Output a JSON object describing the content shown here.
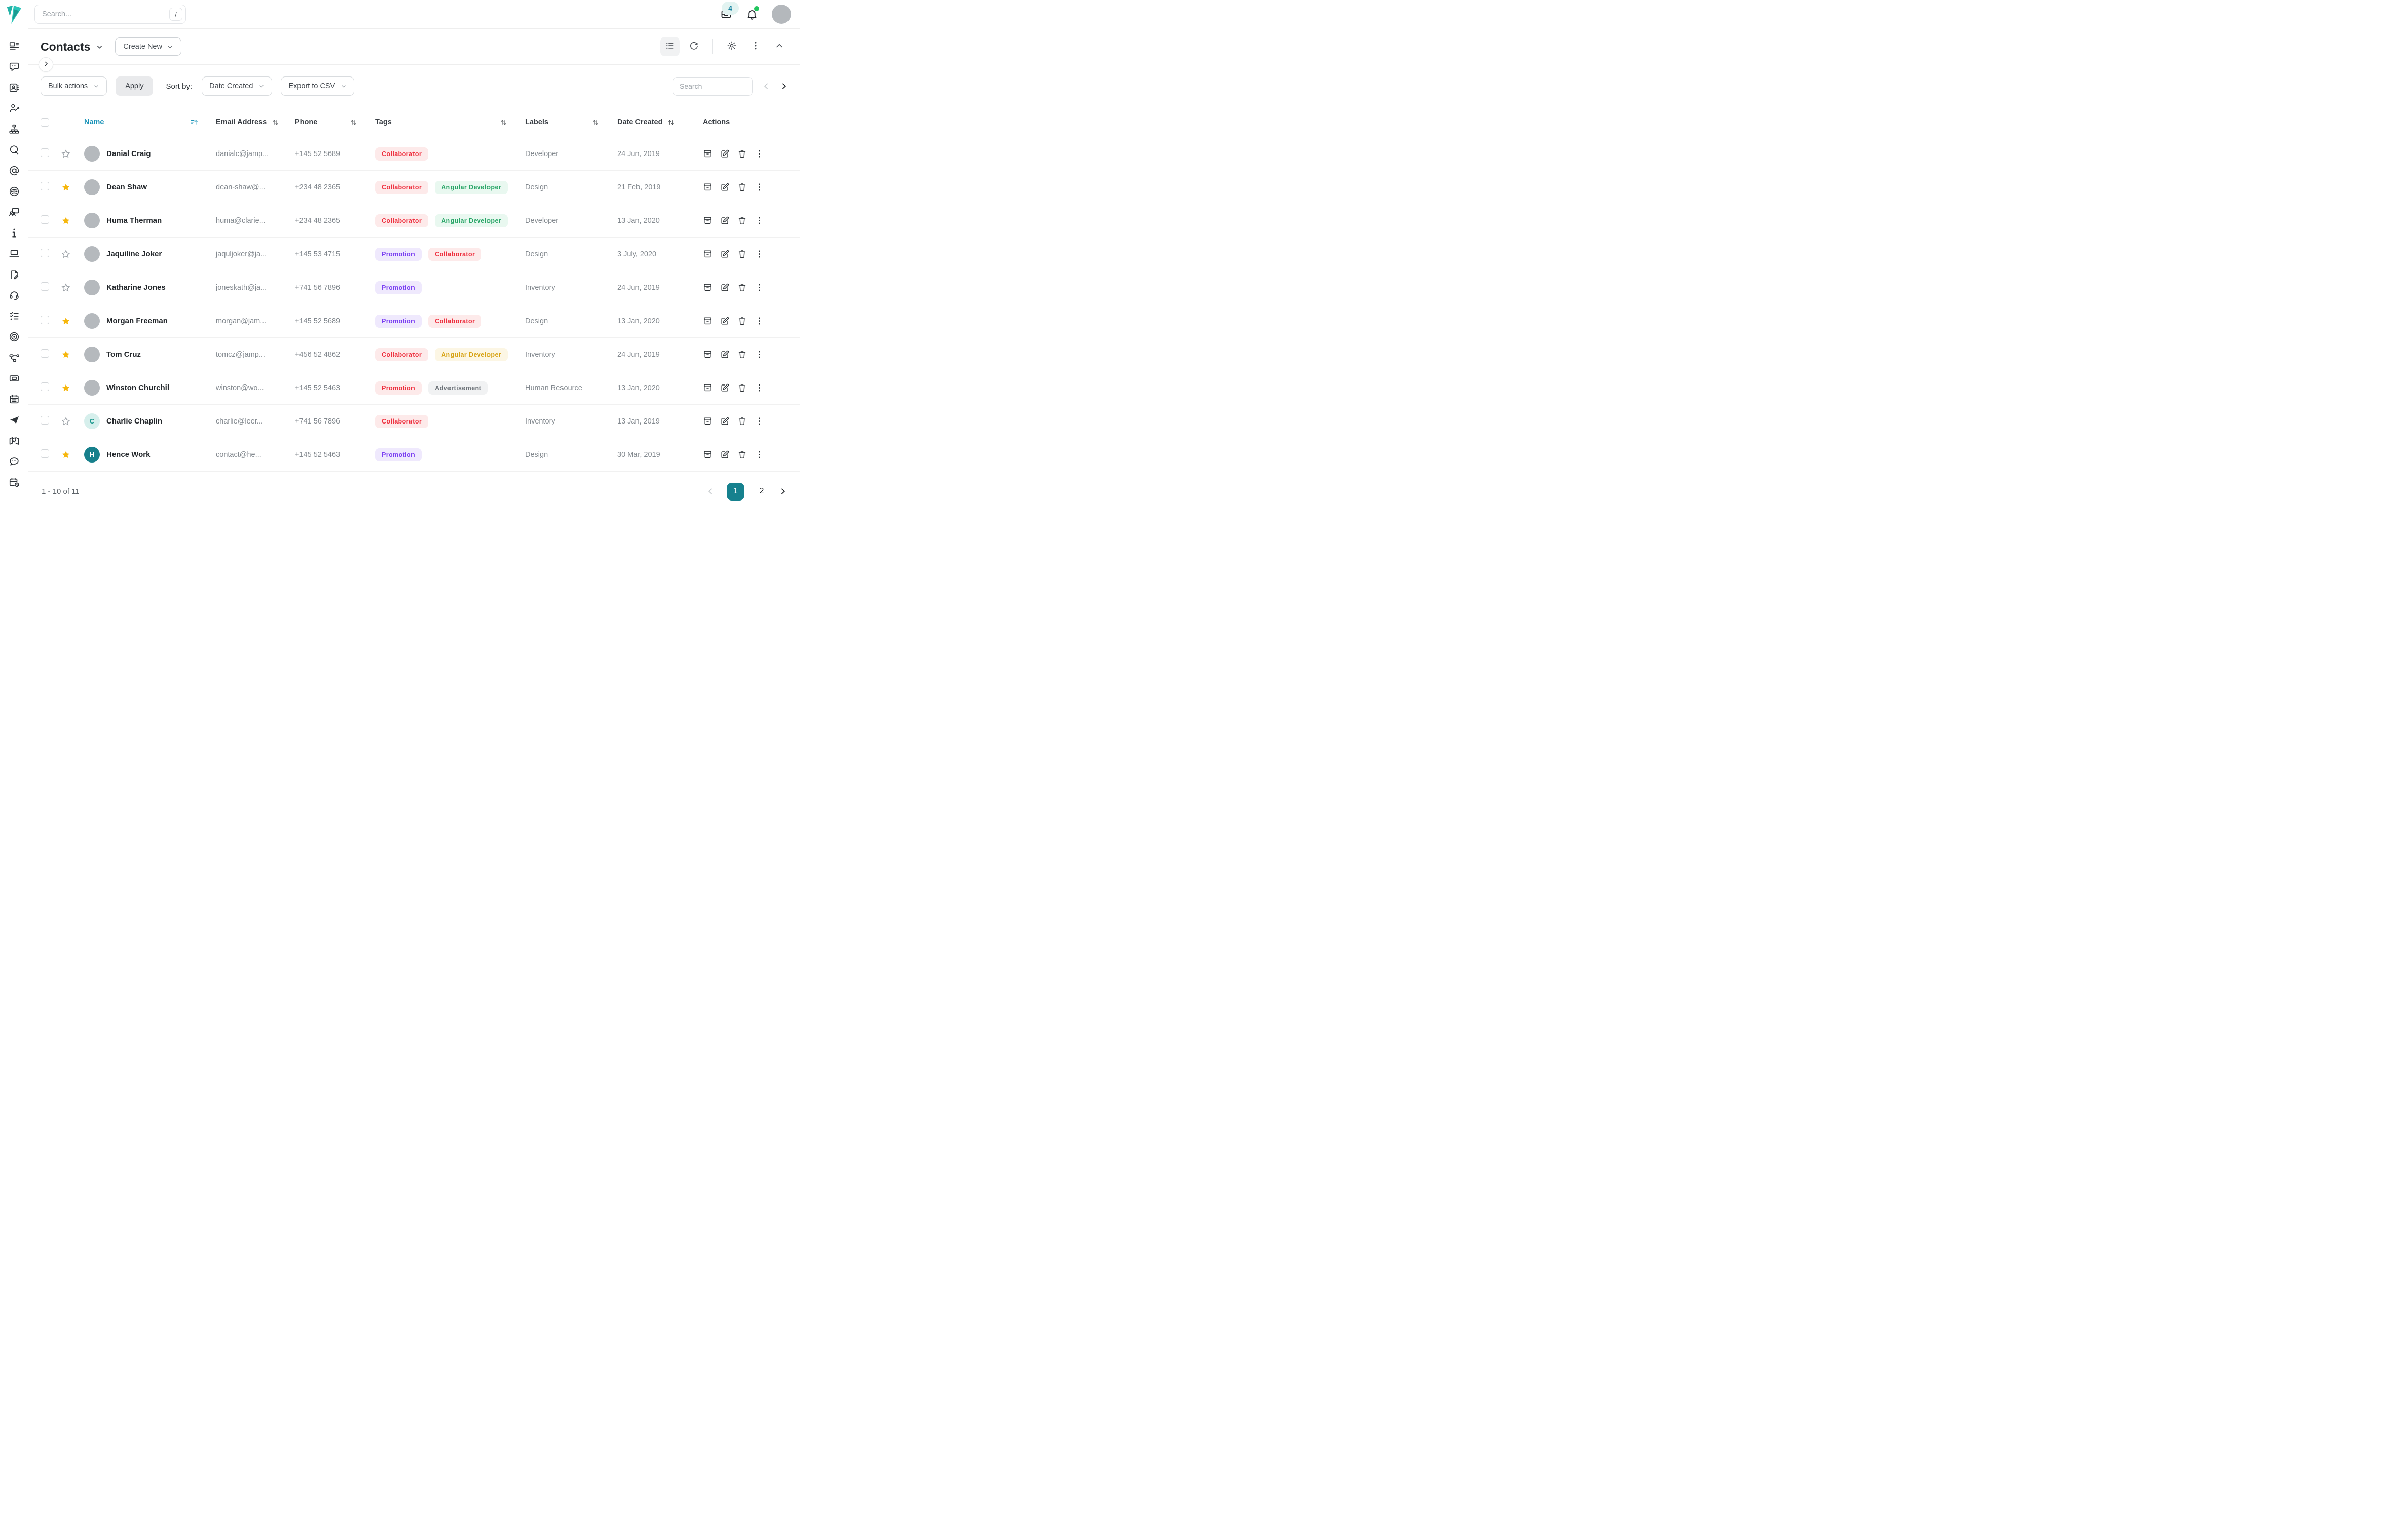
{
  "topbar": {
    "search_placeholder": "Search...",
    "search_shortcut": "/",
    "inbox_badge": "4"
  },
  "sidebar": {
    "icons": [
      "dashboard",
      "chat-dots",
      "contact-card",
      "user-greeting",
      "org-chart",
      "q-letter",
      "at-sign",
      "vinyl-disc",
      "screen-share",
      "info",
      "laptop",
      "contract-sign",
      "headset",
      "checklist",
      "target",
      "workflow",
      "ticket",
      "calendar",
      "paper-plane",
      "map-pin",
      "comment-bubble",
      "calendar-clock"
    ]
  },
  "header": {
    "title": "Contacts",
    "create_button_label": "Create New",
    "view_icons": [
      "list-view",
      "refresh"
    ],
    "more_icons": [
      "gear",
      "kebab",
      "chevron-up"
    ]
  },
  "toolbar": {
    "bulk_actions_label": "Bulk actions",
    "apply_label": "Apply",
    "sort_by_label": "Sort by:",
    "sort_value": "Date Created",
    "export_label": "Export to CSV",
    "search_placeholder": "Search"
  },
  "table": {
    "columns": [
      "Name",
      "Email Address",
      "Phone",
      "Tags",
      "Labels",
      "Date Created",
      "Actions"
    ],
    "row_actions": [
      "archive",
      "edit",
      "trash",
      "kebab"
    ],
    "rows": [
      {
        "name": "Danial Craig",
        "avatar": {
          "type": "photo",
          "letter": ""
        },
        "starred": false,
        "email": "danialc@jamp...",
        "phone": "+145 52 5689",
        "tags": [
          {
            "label": "Collaborator",
            "color": "red"
          }
        ],
        "label": "Developer",
        "date": "24 Jun, 2019"
      },
      {
        "name": "Dean Shaw",
        "avatar": {
          "type": "photo",
          "letter": ""
        },
        "starred": true,
        "email": "dean-shaw@...",
        "phone": "+234 48 2365",
        "tags": [
          {
            "label": "Collaborator",
            "color": "red"
          },
          {
            "label": "Angular Developer",
            "color": "green"
          }
        ],
        "label": "Design",
        "date": "21 Feb, 2019"
      },
      {
        "name": "Huma Therman",
        "avatar": {
          "type": "photo",
          "letter": ""
        },
        "starred": true,
        "email": "huma@clarie...",
        "phone": "+234 48 2365",
        "tags": [
          {
            "label": "Collaborator",
            "color": "red"
          },
          {
            "label": "Angular Developer",
            "color": "green"
          }
        ],
        "label": "Developer",
        "date": "13 Jan, 2020"
      },
      {
        "name": "Jaquiline Joker",
        "avatar": {
          "type": "photo",
          "letter": ""
        },
        "starred": false,
        "email": "jaquljoker@ja...",
        "phone": "+145 53 4715",
        "tags": [
          {
            "label": "Promotion",
            "color": "purple"
          },
          {
            "label": "Collaborator",
            "color": "red"
          }
        ],
        "label": "Design",
        "date": "3 July, 2020"
      },
      {
        "name": "Katharine Jones",
        "avatar": {
          "type": "photo",
          "letter": ""
        },
        "starred": false,
        "email": "joneskath@ja...",
        "phone": "+741 56 7896",
        "tags": [
          {
            "label": "Promotion",
            "color": "purple"
          }
        ],
        "label": "Inventory",
        "date": "24 Jun, 2019"
      },
      {
        "name": "Morgan Freeman",
        "avatar": {
          "type": "photo",
          "letter": ""
        },
        "starred": true,
        "email": "morgan@jam...",
        "phone": "+145 52 5689",
        "tags": [
          {
            "label": "Promotion",
            "color": "purple"
          },
          {
            "label": "Collaborator",
            "color": "red"
          }
        ],
        "label": "Design",
        "date": "13 Jan, 2020"
      },
      {
        "name": "Tom Cruz",
        "avatar": {
          "type": "photo",
          "letter": ""
        },
        "starred": true,
        "email": "tomcz@jamp...",
        "phone": "+456 52 4862",
        "tags": [
          {
            "label": "Collaborator",
            "color": "red"
          },
          {
            "label": "Angular Developer",
            "color": "yellow"
          }
        ],
        "label": "Inventory",
        "date": "24 Jun, 2019"
      },
      {
        "name": "Winston Churchil",
        "avatar": {
          "type": "photo",
          "letter": ""
        },
        "starred": true,
        "email": "winston@wo...",
        "phone": "+145 52 5463",
        "tags": [
          {
            "label": "Promotion",
            "color": "red"
          },
          {
            "label": "Advertisement",
            "color": "gray"
          }
        ],
        "label": "Human Resource",
        "date": "13 Jan, 2020"
      },
      {
        "name": "Charlie Chaplin",
        "avatar": {
          "type": "initial",
          "letter": "C",
          "style": "light"
        },
        "starred": false,
        "email": "charlie@leer...",
        "phone": "+741 56 7896",
        "tags": [
          {
            "label": "Collaborator",
            "color": "red"
          }
        ],
        "label": "Inventory",
        "date": "13 Jan, 2019"
      },
      {
        "name": "Hence Work",
        "avatar": {
          "type": "initial",
          "letter": "H",
          "style": "solid"
        },
        "starred": true,
        "email": "contact@he...",
        "phone": "+145 52 5463",
        "tags": [
          {
            "label": "Promotion",
            "color": "purple"
          }
        ],
        "label": "Design",
        "date": "30 Mar, 2019"
      }
    ]
  },
  "footer": {
    "range_text": "1 - 10 of 11",
    "pages": [
      "1",
      "2"
    ],
    "active_page": "1"
  },
  "colors": {
    "accent_teal": "#16818e",
    "logo_teal": "#23b3a8",
    "name_header": "#1a93b8",
    "star_yellow": "#f6b60b",
    "notification_green": "#22c55e"
  }
}
